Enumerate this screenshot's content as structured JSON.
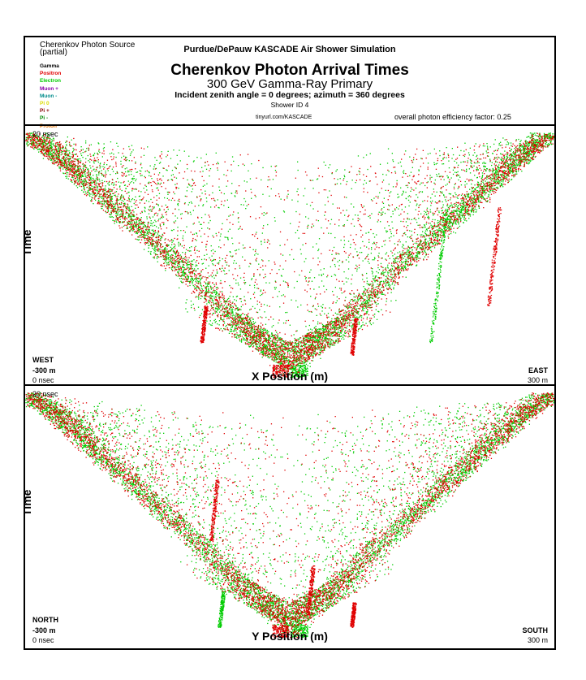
{
  "header": {
    "legend_title": "Cherenkov Photon Source",
    "legend_subtitle": "(partial)",
    "legend_items": [
      {
        "label": "Gamma",
        "color": "#000000"
      },
      {
        "label": "Positron",
        "color": "#e00000"
      },
      {
        "label": "Electron",
        "color": "#00cc00"
      },
      {
        "label": "Muon +",
        "color": "#8800aa"
      },
      {
        "label": "Muon -",
        "color": "#008b8b"
      },
      {
        "label": "Pi 0",
        "color": "#dddd00"
      },
      {
        "label": "Pi +",
        "color": "#880000"
      },
      {
        "label": "Pi -",
        "color": "#008800"
      },
      {
        "label": "Proton",
        "color": "#e07000"
      }
    ],
    "supertitle": "Purdue/DePauw KASCADE Air Shower Simulation",
    "title": "Cherenkov Photon Arrival Times",
    "subtitle": "300 GeV Gamma-Ray Primary",
    "angles": "Incident zenith angle =  0 degrees;  azimuth =  360 degrees",
    "shower_id": "Shower ID 4",
    "url": "tinyurl.com/KASCADE",
    "efficiency": "overall photon efficiency factor: 0.25"
  },
  "chart_data": [
    {
      "type": "scatter",
      "description_axis": "x",
      "xlabel": "X Position (m)",
      "ylabel": "Time",
      "xlim": [
        -300,
        300
      ],
      "ylim": [
        0,
        20
      ],
      "x_units": "m",
      "y_units": "nsec",
      "labels": {
        "time_max": "20 nsec",
        "time_min": "0 nsec",
        "dir_left": "WEST",
        "pos_left": "-300 m",
        "dir_right": "EAST",
        "pos_right": "300 m"
      },
      "series": [
        {
          "name": "Electron",
          "color": "#00cc00"
        },
        {
          "name": "Positron",
          "color": "#e00000"
        }
      ],
      "shape": {
        "apex_x": 0,
        "apex_t": 0.8,
        "edge_t": 20,
        "slope_nsec_per_m": 0.066
      },
      "streaks": [
        {
          "x": 160,
          "t_from": 3,
          "t_to": 14,
          "series": "Electron"
        },
        {
          "x": 225,
          "t_from": 6,
          "t_to": 14,
          "series": "Positron"
        },
        {
          "x": -100,
          "t_from": 3,
          "t_to": 6,
          "series": "Positron"
        },
        {
          "x": 70,
          "t_from": 2,
          "t_to": 5,
          "series": "Positron"
        }
      ]
    },
    {
      "type": "scatter",
      "xlabel": "Y Position (m)",
      "ylabel": "Time",
      "xlim": [
        -300,
        300
      ],
      "ylim": [
        0,
        20
      ],
      "x_units": "m",
      "y_units": "nsec",
      "labels": {
        "time_max": "20 nsec",
        "time_min": "0 nsec",
        "dir_left": "NORTH",
        "pos_left": "-300 m",
        "dir_right": "SOUTH",
        "pos_right": "300 m"
      },
      "series": [
        {
          "name": "Electron",
          "color": "#00cc00"
        },
        {
          "name": "Positron",
          "color": "#e00000"
        }
      ],
      "shape": {
        "apex_x": 0,
        "apex_t": 0.8,
        "edge_t": 20,
        "slope_nsec_per_m": 0.066
      },
      "streaks": [
        {
          "x": -90,
          "t_from": 8,
          "t_to": 13,
          "series": "Positron"
        },
        {
          "x": -80,
          "t_from": 1,
          "t_to": 4,
          "series": "Electron"
        },
        {
          "x": 20,
          "t_from": 2,
          "t_to": 6,
          "series": "Positron"
        },
        {
          "x": 70,
          "t_from": 1,
          "t_to": 3,
          "series": "Positron"
        }
      ]
    }
  ]
}
